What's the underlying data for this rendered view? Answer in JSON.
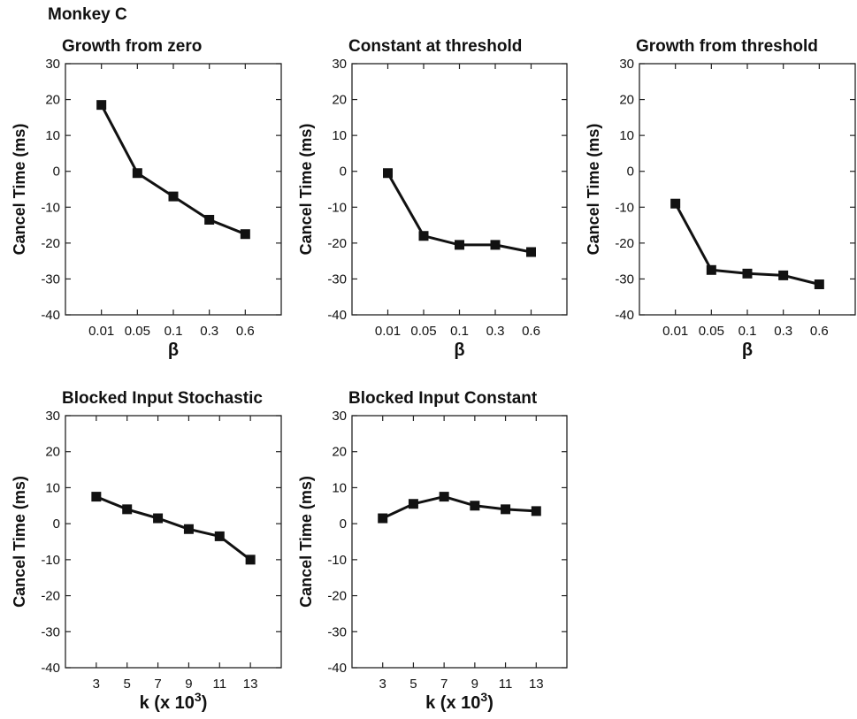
{
  "figure_label": "Monkey C",
  "colors": {
    "line": "#111111",
    "marker": "#111111",
    "axes": "#222222",
    "background": "#ffffff"
  },
  "chart_data": [
    {
      "type": "line",
      "title": "Growth from zero",
      "ylabel": "Cancel Time (ms)",
      "xlabel": "β",
      "xlabel_sup": "",
      "xlabel_tail": "",
      "categories": [
        "0.01",
        "0.05",
        "0.1",
        "0.3",
        "0.6"
      ],
      "values": [
        18.5,
        -0.5,
        -7,
        -13.5,
        -17.5
      ],
      "yticks": [
        30,
        20,
        10,
        0,
        -10,
        -20,
        -30,
        -40
      ],
      "ylim": [
        -40,
        30
      ],
      "grid": false
    },
    {
      "type": "line",
      "title": "Constant at threshold",
      "ylabel": "Cancel Time (ms)",
      "xlabel": "β",
      "xlabel_sup": "",
      "xlabel_tail": "",
      "categories": [
        "0.01",
        "0.05",
        "0.1",
        "0.3",
        "0.6"
      ],
      "values": [
        -0.5,
        -18,
        -20.5,
        -20.5,
        -22.5
      ],
      "yticks": [
        30,
        20,
        10,
        0,
        -10,
        -20,
        -30,
        -40
      ],
      "ylim": [
        -40,
        30
      ],
      "grid": false
    },
    {
      "type": "line",
      "title": "Growth from threshold",
      "ylabel": "Cancel Time (ms)",
      "xlabel": "β",
      "xlabel_sup": "",
      "xlabel_tail": "",
      "categories": [
        "0.01",
        "0.05",
        "0.1",
        "0.3",
        "0.6"
      ],
      "values": [
        -9,
        -27.5,
        -28.5,
        -29,
        -31.5
      ],
      "yticks": [
        30,
        20,
        10,
        0,
        -10,
        -20,
        -30,
        -40
      ],
      "ylim": [
        -40,
        30
      ],
      "grid": false
    },
    {
      "type": "line",
      "title": "Blocked Input Stochastic",
      "ylabel": "Cancel Time (ms)",
      "xlabel": "k (x 10",
      "xlabel_sup": "3",
      "xlabel_tail": ")",
      "categories": [
        "3",
        "5",
        "7",
        "9",
        "11",
        "13"
      ],
      "values": [
        7.5,
        4,
        1.5,
        -1.5,
        -3.5,
        -10
      ],
      "yticks": [
        30,
        20,
        10,
        0,
        -10,
        -20,
        -30,
        -40
      ],
      "ylim": [
        -40,
        30
      ],
      "grid": false
    },
    {
      "type": "line",
      "title": "Blocked Input Constant",
      "ylabel": "Cancel Time (ms)",
      "xlabel": "k (x 10",
      "xlabel_sup": "3",
      "xlabel_tail": ")",
      "categories": [
        "3",
        "5",
        "7",
        "9",
        "11",
        "13"
      ],
      "values": [
        1.5,
        5.5,
        7.5,
        5,
        4,
        3.5
      ],
      "yticks": [
        30,
        20,
        10,
        0,
        -10,
        -20,
        -30,
        -40
      ],
      "ylim": [
        -40,
        30
      ],
      "grid": false
    }
  ]
}
